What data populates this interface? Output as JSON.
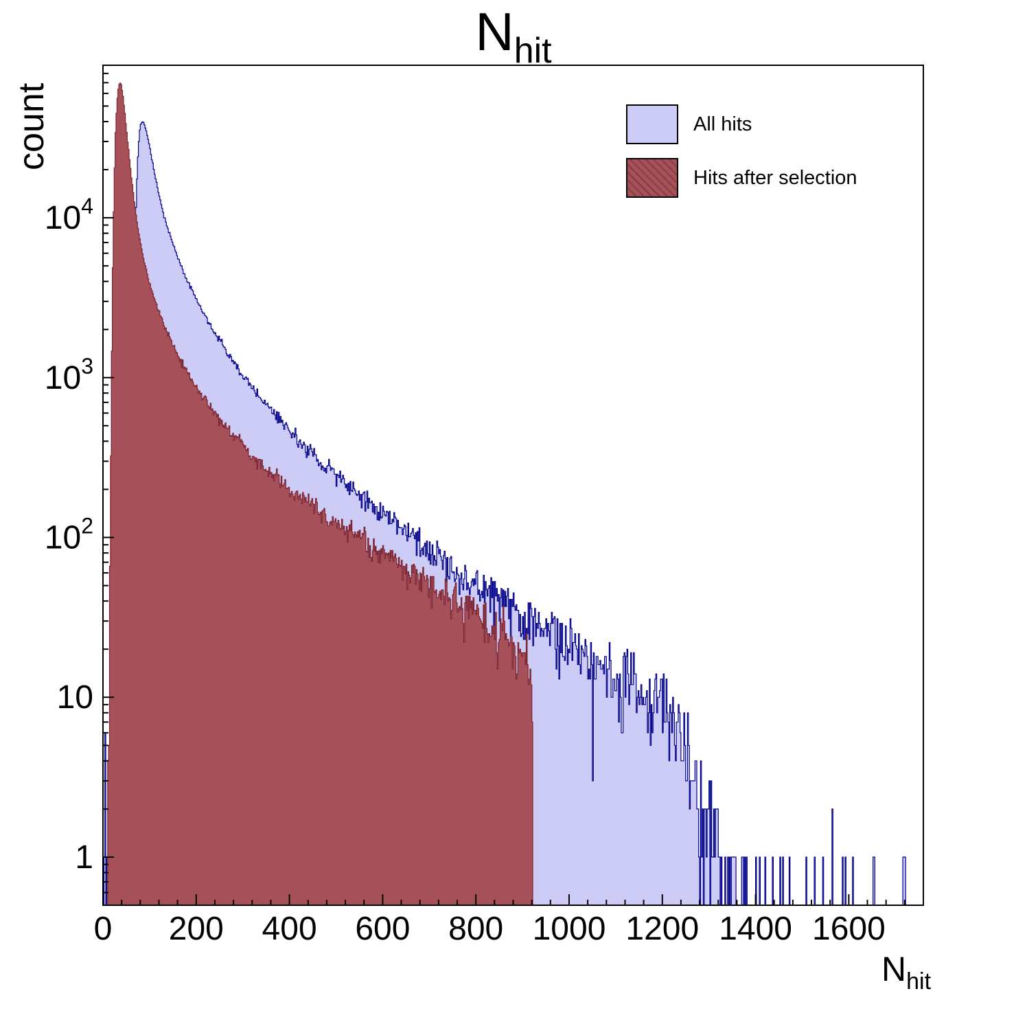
{
  "title": {
    "main": "N",
    "sub": "hit"
  },
  "y_axis": {
    "label": "count",
    "scale": "log",
    "min": 0.5,
    "max": 90000,
    "major_ticks": [
      1,
      10,
      100,
      1000,
      10000
    ]
  },
  "x_axis": {
    "label_main": "N",
    "label_sub": "hit",
    "min": 0,
    "max": 1760,
    "major_tick_step": 200,
    "minor_tick_step": 40,
    "tick_labels": [
      0,
      200,
      400,
      600,
      800,
      1000,
      1200,
      1400,
      1600
    ]
  },
  "legend": {
    "items": [
      {
        "label": "All hits"
      },
      {
        "label": "Hits after selection"
      }
    ]
  },
  "colors": {
    "background": "#ffffff",
    "axis": "#000000",
    "all_hits_fill": "#ccccf6",
    "all_hits_line": "#00008b",
    "selected_fill": "#a65159",
    "selected_line": "#7c2430"
  },
  "chart_data": {
    "type": "bar",
    "subtype": "overlaid-histograms",
    "title": "N_hit",
    "xlabel": "N_hit",
    "ylabel": "count",
    "xlim": [
      0,
      1760
    ],
    "ylim": [
      0.5,
      90000
    ],
    "ylog": true,
    "grid": false,
    "legend_position": "top-right-inside",
    "bin_width": 2,
    "note": "envelope_points are [x, expected count]; bars are Poisson-fluctuated around the envelope, log-interpolated between points",
    "series": [
      {
        "name": "All hits",
        "fill": "#ccccf6",
        "line": "#00008b",
        "envelope_points": [
          [
            3,
            0.2
          ],
          [
            5,
            8
          ],
          [
            7,
            0.3
          ],
          [
            40,
            0.1
          ],
          [
            52,
            0.2
          ],
          [
            56,
            1
          ],
          [
            60,
            30
          ],
          [
            64,
            700
          ],
          [
            68,
            5000
          ],
          [
            72,
            15000
          ],
          [
            76,
            28000
          ],
          [
            80,
            38000
          ],
          [
            84,
            40000
          ],
          [
            88,
            39000
          ],
          [
            94,
            34000
          ],
          [
            100,
            28000
          ],
          [
            108,
            21000
          ],
          [
            118,
            15000
          ],
          [
            130,
            10500
          ],
          [
            145,
            7600
          ],
          [
            160,
            5700
          ],
          [
            180,
            4100
          ],
          [
            200,
            3100
          ],
          [
            220,
            2400
          ],
          [
            240,
            1900
          ],
          [
            260,
            1550
          ],
          [
            285,
            1200
          ],
          [
            310,
            950
          ],
          [
            340,
            730
          ],
          [
            370,
            580
          ],
          [
            400,
            460
          ],
          [
            435,
            360
          ],
          [
            470,
            290
          ],
          [
            510,
            230
          ],
          [
            550,
            185
          ],
          [
            590,
            150
          ],
          [
            630,
            122
          ],
          [
            670,
            100
          ],
          [
            710,
            80
          ],
          [
            750,
            65
          ],
          [
            790,
            53
          ],
          [
            830,
            44
          ],
          [
            870,
            37
          ],
          [
            910,
            30
          ],
          [
            950,
            25
          ],
          [
            990,
            21
          ],
          [
            1030,
            18
          ],
          [
            1070,
            16
          ],
          [
            1110,
            14
          ],
          [
            1150,
            12
          ],
          [
            1190,
            10
          ],
          [
            1220,
            7
          ],
          [
            1250,
            4
          ],
          [
            1280,
            2.2
          ],
          [
            1320,
            1.1
          ],
          [
            1370,
            0.4
          ],
          [
            1440,
            0.22
          ],
          [
            1520,
            0.13
          ],
          [
            1620,
            0.1
          ],
          [
            1755,
            0.08
          ]
        ]
      },
      {
        "name": "Hits after selection",
        "fill": "#a65159",
        "line": "#7c2430",
        "envelope_points": [
          [
            9,
            0.2
          ],
          [
            12,
            3
          ],
          [
            15,
            60
          ],
          [
            18,
            800
          ],
          [
            21,
            5000
          ],
          [
            24,
            16000
          ],
          [
            27,
            34000
          ],
          [
            30,
            52000
          ],
          [
            33,
            64000
          ],
          [
            36,
            70000
          ],
          [
            39,
            68000
          ],
          [
            43,
            58000
          ],
          [
            48,
            42000
          ],
          [
            54,
            28000
          ],
          [
            60,
            19000
          ],
          [
            68,
            12000
          ],
          [
            76,
            8200
          ],
          [
            85,
            5900
          ],
          [
            95,
            4400
          ],
          [
            105,
            3500
          ],
          [
            118,
            2700
          ],
          [
            132,
            2100
          ],
          [
            148,
            1650
          ],
          [
            165,
            1300
          ],
          [
            185,
            1020
          ],
          [
            205,
            820
          ],
          [
            225,
            680
          ],
          [
            245,
            570
          ],
          [
            270,
            465
          ],
          [
            295,
            385
          ],
          [
            320,
            325
          ],
          [
            350,
            270
          ],
          [
            380,
            228
          ],
          [
            410,
            195
          ],
          [
            445,
            163
          ],
          [
            480,
            138
          ],
          [
            520,
            115
          ],
          [
            560,
            96
          ],
          [
            600,
            80
          ],
          [
            640,
            67
          ],
          [
            680,
            56
          ],
          [
            720,
            47
          ],
          [
            760,
            39
          ],
          [
            800,
            33
          ],
          [
            840,
            27
          ],
          [
            875,
            23
          ],
          [
            900,
            19
          ],
          [
            912,
            16
          ],
          [
            918,
            13
          ],
          [
            921,
            8
          ],
          [
            923,
            0.001
          ],
          [
            1760,
            0.001
          ]
        ]
      }
    ]
  }
}
